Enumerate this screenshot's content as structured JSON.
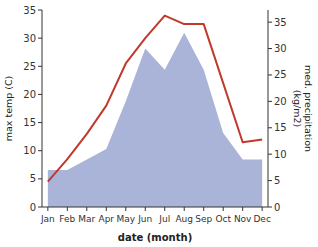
{
  "chart_data": {
    "type": "line",
    "xlabel": "date (month)",
    "ylabel": "max temp (C)",
    "y2label": "med. precipitation\n(kg/m2)",
    "categories": [
      "Jan",
      "Feb",
      "Mar",
      "Apr",
      "May",
      "Jun",
      "Jul",
      "Aug",
      "Sep",
      "Oct",
      "Nov",
      "Dec"
    ],
    "series": [
      {
        "type": "area",
        "axis": "y2",
        "color": "#aab4d8",
        "values": [
          7,
          7,
          9,
          11,
          20,
          30,
          26,
          33,
          26,
          14,
          9,
          9
        ]
      },
      {
        "type": "line",
        "color": "#c0392b",
        "values": [
          4.5,
          8.5,
          13.0,
          18.0,
          25.5,
          30.0,
          34.0,
          32.5,
          32.5,
          22.0,
          11.5,
          12.0
        ]
      }
    ],
    "ylim": [
      0,
      35
    ],
    "yticks": [
      0,
      5,
      10,
      15,
      20,
      25,
      30,
      35
    ],
    "y2lim": [
      0,
      37.3
    ],
    "y2ticks": [
      0,
      5,
      10,
      15,
      20,
      25,
      30,
      35
    ],
    "grid": false
  }
}
